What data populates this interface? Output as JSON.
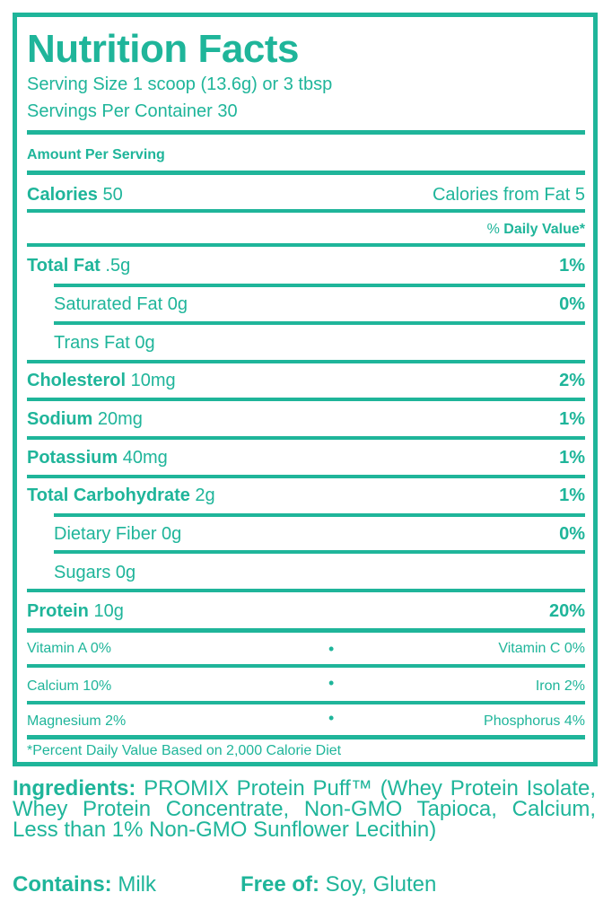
{
  "title": "Nutrition Facts",
  "serving_size": "Serving Size 1 scoop (13.6g) or 3 tbsp",
  "servings_per_container": "Servings Per Container 30",
  "amount_per_serving": "Amount Per Serving",
  "calories": {
    "label": "Calories",
    "value": "50",
    "from_fat": "Calories from Fat 5"
  },
  "daily_value_header": {
    "pct": "%",
    "label": "Daily Value*"
  },
  "nutrients": [
    {
      "label": "Total Fat",
      "amount": " .5g",
      "dv": "1%"
    },
    {
      "label": "Saturated Fat 0g",
      "amount": "",
      "dv": "0%"
    },
    {
      "label": "Trans Fat 0g",
      "amount": "",
      "dv": ""
    },
    {
      "label": "Cholesterol",
      "amount": " 10mg",
      "dv": "2%"
    },
    {
      "label": "Sodium",
      "amount": " 20mg",
      "dv": "1%"
    },
    {
      "label": "Potassium",
      "amount": " 40mg",
      "dv": "1%"
    },
    {
      "label": "Total Carbohydrate",
      "amount": " 2g",
      "dv": "1%"
    },
    {
      "label": "Dietary Fiber 0g",
      "amount": "",
      "dv": "0%"
    },
    {
      "label": "Sugars 0g",
      "amount": "",
      "dv": ""
    },
    {
      "label": "Protein",
      "amount": " 10g",
      "dv": "20%"
    }
  ],
  "vitamins": [
    {
      "left": "Vitamin A 0%",
      "sep": "•",
      "right": "Vitamin C 0%"
    },
    {
      "left": "Calcium 10%",
      "sep": "•",
      "right": "Iron 2%"
    },
    {
      "left": "Magnesium 2%",
      "sep": "•",
      "right": "Phosphorus 4%"
    }
  ],
  "footnote": "*Percent Daily Value Based on 2,000 Calorie Diet",
  "ingredients": {
    "label": "Ingredients:",
    "text": " PROMIX Protein Puff™ (Whey Protein Isolate, Whey Protein Concentrate, Non-GMO Tapioca, Calcium, Less than 1% Non-GMO Sunflower Lecithin)"
  },
  "contains": {
    "label": "Contains:",
    "value": " Milk"
  },
  "free_of": {
    "label": "Free of:",
    "value": " Soy, Gluten"
  },
  "colors": {
    "accent": "#1fb59a"
  }
}
